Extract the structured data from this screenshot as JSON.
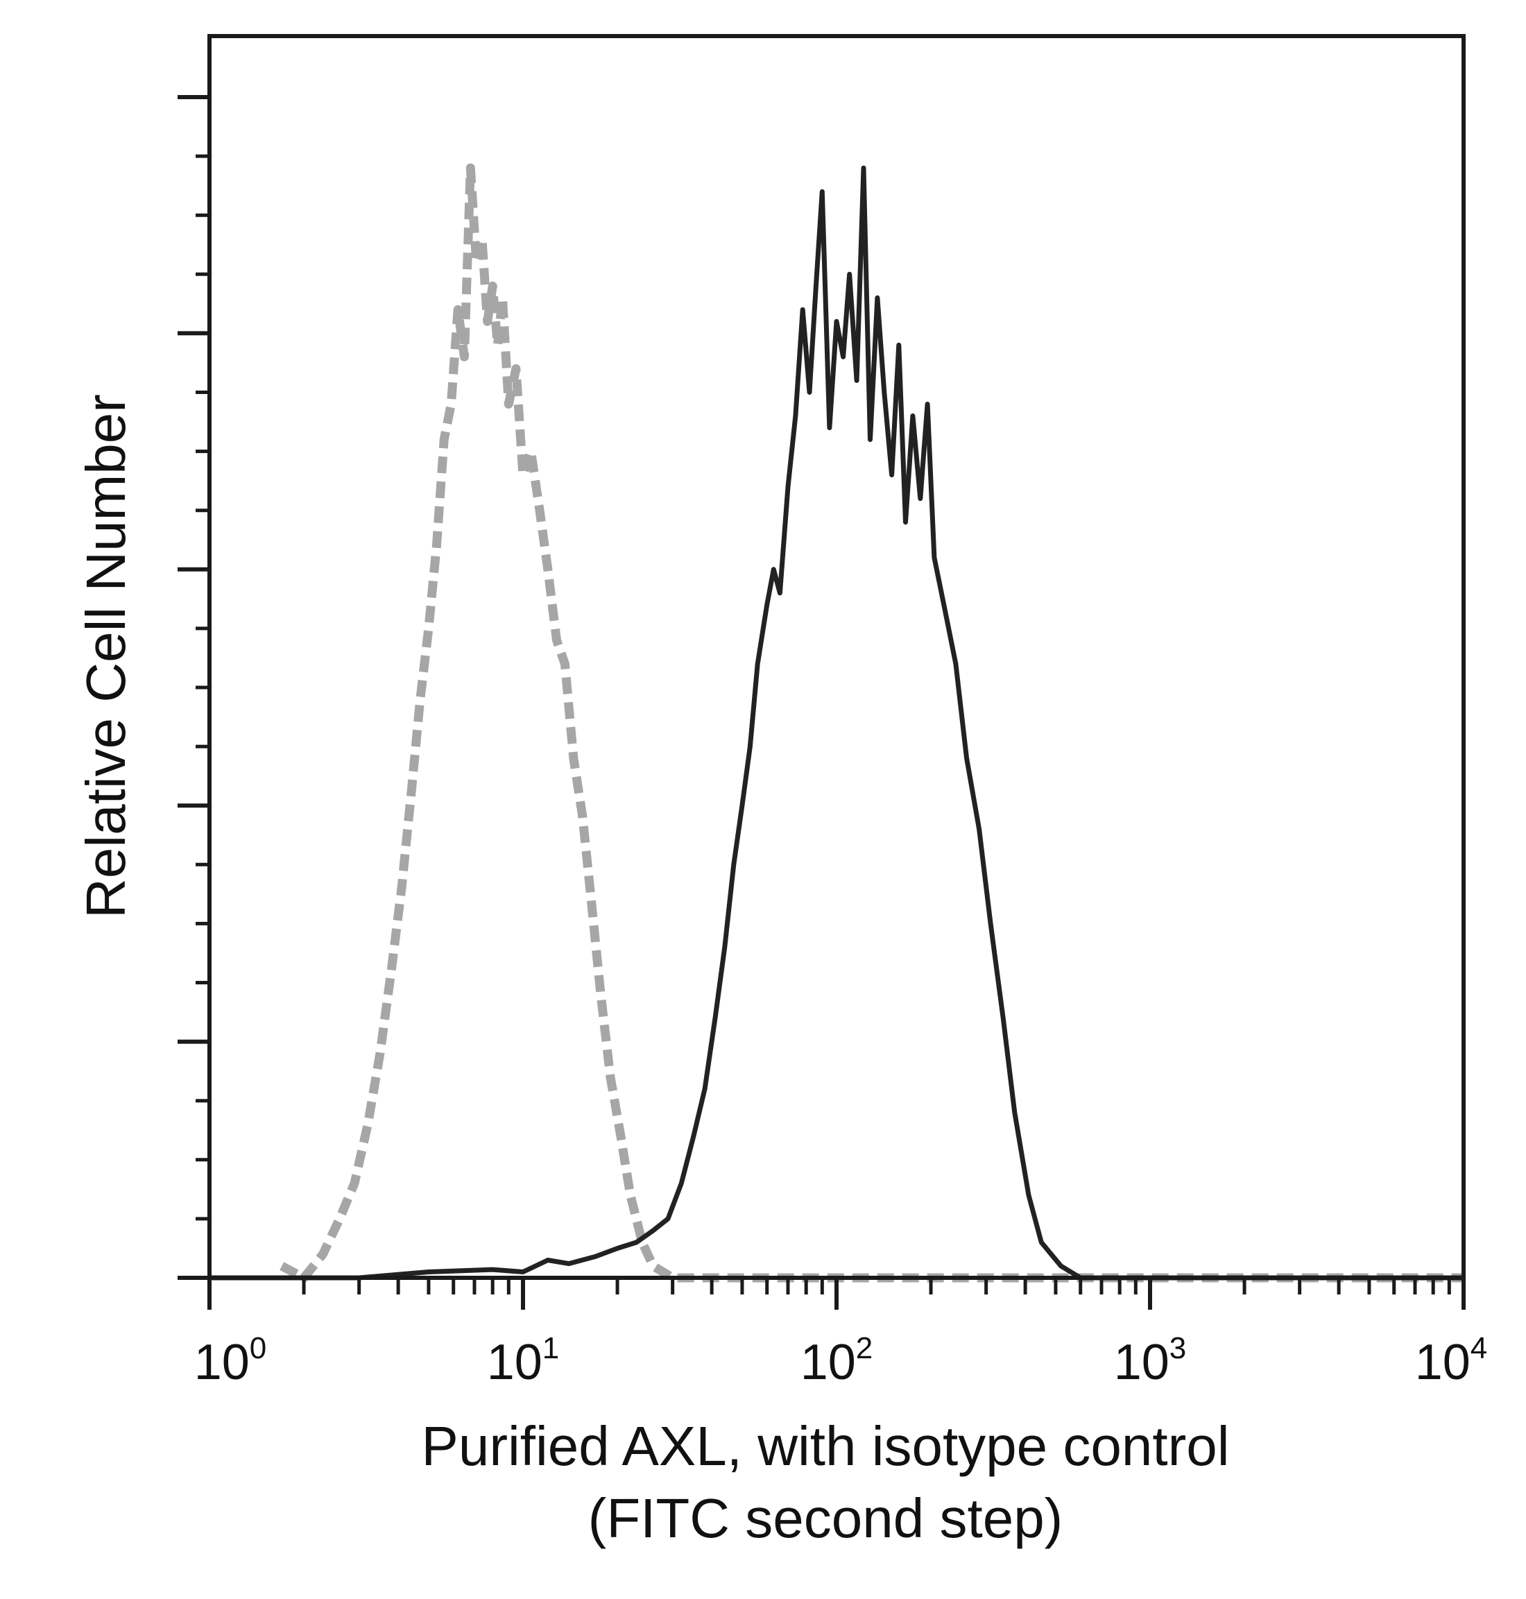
{
  "chart_data": {
    "type": "line",
    "title": "",
    "xlabel": "Purified AXL, with isotype control",
    "xlabel_line2": "(FITC second step)",
    "ylabel": "Relative Cell Number",
    "x_scale": "log",
    "xlim": [
      1,
      10000
    ],
    "ylim": [
      0,
      100
    ],
    "grid": false,
    "legend": "none",
    "x_ticks": [
      {
        "base": "10",
        "exp": "0",
        "value": 1
      },
      {
        "base": "10",
        "exp": "1",
        "value": 10
      },
      {
        "base": "10",
        "exp": "2",
        "value": 100
      },
      {
        "base": "10",
        "exp": "3",
        "value": 1000
      },
      {
        "base": "10",
        "exp": "4",
        "value": 10000
      }
    ],
    "y_major_ticks": [
      0,
      20,
      40,
      60,
      80,
      100
    ],
    "y_minor_step": 5,
    "series": [
      {
        "style": "dashed",
        "color": "#a6a6a6",
        "x": [
          1.7,
          2.0,
          2.3,
          2.6,
          2.9,
          3.2,
          3.5,
          3.8,
          4.1,
          4.4,
          4.7,
          5.0,
          5.3,
          5.6,
          5.9,
          6.2,
          6.5,
          6.8,
          7.1,
          7.4,
          7.7,
          8.0,
          8.3,
          8.6,
          9.0,
          9.5,
          10.0,
          10.6,
          11.3,
          12.0,
          12.8,
          13.6,
          14.5,
          15.5,
          16.5,
          17.7,
          19.0,
          20.5,
          22.0,
          24.0,
          26.0,
          30.0,
          40.0,
          60.0,
          100.0,
          200.0,
          500.0,
          1000.0,
          10000.0
        ],
        "y": [
          1,
          0,
          2,
          5,
          8,
          13,
          19,
          26,
          33,
          41,
          49,
          55,
          62,
          71,
          74,
          82,
          78,
          94,
          86,
          88,
          81,
          84,
          79,
          83,
          74,
          77,
          68,
          70,
          65,
          60,
          54,
          52,
          44,
          39,
          32,
          24,
          17,
          12,
          7,
          3,
          1,
          0,
          0,
          0,
          0,
          0,
          0,
          0,
          0
        ]
      },
      {
        "style": "solid",
        "color": "#222222",
        "x": [
          1.0,
          3.0,
          5.0,
          8.0,
          10.0,
          12.0,
          14.0,
          17.0,
          20.0,
          23.0,
          26.0,
          29.0,
          32.0,
          35.0,
          38.0,
          41.0,
          44.0,
          47.0,
          50.0,
          53.0,
          56.0,
          60.0,
          63.0,
          66.0,
          70.0,
          74.0,
          78.0,
          82.0,
          86.0,
          90.0,
          95.0,
          100.0,
          105.0,
          110.0,
          116.0,
          122.0,
          128.0,
          135.0,
          142.0,
          150.0,
          158.0,
          166.0,
          175.0,
          185.0,
          195.0,
          205.0,
          220.0,
          240.0,
          260.0,
          285.0,
          310.0,
          340.0,
          370.0,
          410.0,
          450.0,
          520.0,
          600.0,
          1000.0,
          10000.0
        ],
        "y": [
          0,
          0,
          0.5,
          0.7,
          0.5,
          1.5,
          1.2,
          1.8,
          2.5,
          3,
          4,
          5,
          8,
          12,
          16,
          22,
          28,
          35,
          40,
          45,
          52,
          57,
          60,
          58,
          67,
          73,
          82,
          75,
          84,
          92,
          72,
          81,
          78,
          85,
          76,
          94,
          71,
          83,
          75,
          68,
          79,
          64,
          73,
          66,
          74,
          61,
          57,
          52,
          44,
          38,
          30,
          22,
          14,
          7,
          3,
          1,
          0,
          0,
          0
        ]
      }
    ]
  }
}
